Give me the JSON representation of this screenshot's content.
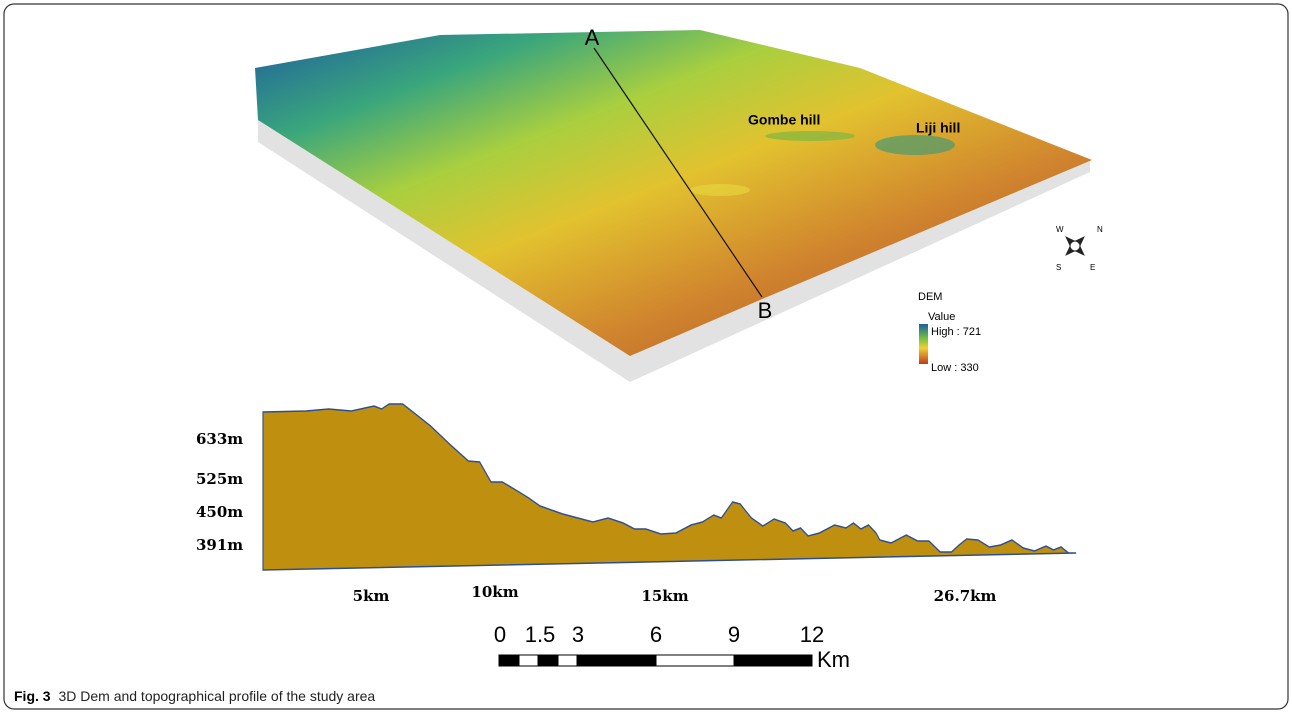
{
  "map3d": {
    "labels": {
      "a": "A",
      "b": "B",
      "gombe": "Gombe hill",
      "liji": "Liji hill"
    },
    "legend": {
      "title": "DEM",
      "subtitle": "Value",
      "high": "High : 721",
      "low": "Low : 330"
    },
    "compass": {
      "n": "N",
      "e": "E",
      "s": "S",
      "w": "W"
    }
  },
  "profile": {
    "y_labels": [
      "633m",
      "525m",
      "450m",
      "391m"
    ],
    "x_labels": [
      "5km",
      "10km",
      "15km",
      "26.7km"
    ]
  },
  "scale_bar": {
    "ticks": [
      "0",
      "1.5",
      "3",
      "6",
      "9",
      "12"
    ],
    "unit": "Km"
  },
  "caption": {
    "label": "Fig. 3",
    "text": "3D Dem and topographical profile of the study area"
  }
}
